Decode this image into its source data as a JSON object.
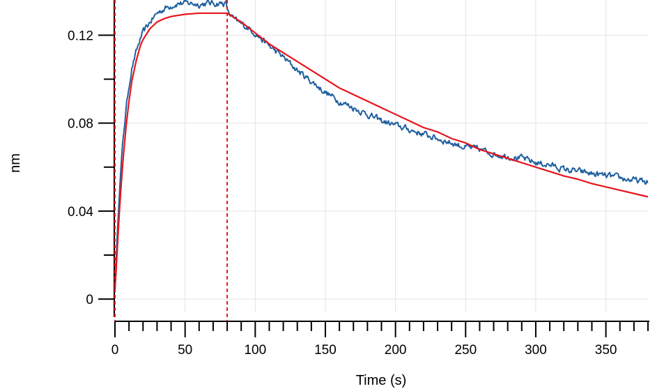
{
  "chart_data": {
    "type": "line",
    "title": "",
    "xlabel": "Time (s)",
    "ylabel": "nm",
    "xlim": [
      0,
      380
    ],
    "ylim": [
      -0.006,
      0.136
    ],
    "xticks": [
      0,
      50,
      100,
      150,
      200,
      250,
      300,
      350
    ],
    "xtick_labels": [
      "0",
      "50",
      "100",
      "150",
      "200",
      "250",
      "300",
      "350"
    ],
    "yticks": [
      0,
      0.04,
      0.08,
      0.12
    ],
    "ytick_labels": [
      "0",
      "0.04",
      "0.08",
      "0.12"
    ],
    "grid": true,
    "vlines": [
      0,
      80
    ],
    "series": [
      {
        "color": "#1f5f9e",
        "style": "noisy",
        "points": [
          [
            0,
            0.003
          ],
          [
            0.5,
            0.012
          ],
          [
            1,
            0.02
          ],
          [
            2,
            0.035
          ],
          [
            3,
            0.047
          ],
          [
            4,
            0.057
          ],
          [
            5,
            0.066
          ],
          [
            6,
            0.074
          ],
          [
            8,
            0.087
          ],
          [
            10,
            0.097
          ],
          [
            12,
            0.105
          ],
          [
            15,
            0.112
          ],
          [
            18,
            0.118
          ],
          [
            20,
            0.121
          ],
          [
            25,
            0.126
          ],
          [
            30,
            0.13
          ],
          [
            35,
            0.132
          ],
          [
            40,
            0.1335
          ],
          [
            45,
            0.1345
          ],
          [
            50,
            0.1345
          ],
          [
            55,
            0.1345
          ],
          [
            60,
            0.134
          ],
          [
            65,
            0.1345
          ],
          [
            70,
            0.1345
          ],
          [
            75,
            0.1345
          ],
          [
            79.5,
            0.1345
          ],
          [
            80,
            0.131
          ],
          [
            82,
            0.1295
          ],
          [
            85,
            0.127
          ],
          [
            90,
            0.125
          ],
          [
            95,
            0.1235
          ],
          [
            100,
            0.121
          ],
          [
            110,
            0.115
          ],
          [
            120,
            0.11
          ],
          [
            130,
            0.104
          ],
          [
            140,
            0.099
          ],
          [
            150,
            0.094
          ],
          [
            160,
            0.09
          ],
          [
            170,
            0.087
          ],
          [
            180,
            0.084
          ],
          [
            190,
            0.081
          ],
          [
            200,
            0.079
          ],
          [
            210,
            0.077
          ],
          [
            220,
            0.075
          ],
          [
            230,
            0.073
          ],
          [
            240,
            0.071
          ],
          [
            250,
            0.069
          ],
          [
            260,
            0.068
          ],
          [
            270,
            0.066
          ],
          [
            280,
            0.065
          ],
          [
            290,
            0.064
          ],
          [
            300,
            0.062
          ],
          [
            310,
            0.061
          ],
          [
            320,
            0.059
          ],
          [
            330,
            0.058
          ],
          [
            340,
            0.057
          ],
          [
            350,
            0.056
          ],
          [
            360,
            0.055
          ],
          [
            370,
            0.054
          ],
          [
            380,
            0.053
          ]
        ]
      },
      {
        "color": "#e8141c",
        "style": "fit",
        "points": [
          [
            0,
            0.005
          ],
          [
            0.5,
            0.0095
          ],
          [
            1,
            0.015
          ],
          [
            2,
            0.027
          ],
          [
            3,
            0.038
          ],
          [
            4,
            0.048
          ],
          [
            5,
            0.057
          ],
          [
            6,
            0.065
          ],
          [
            8,
            0.079
          ],
          [
            10,
            0.09
          ],
          [
            12,
            0.099
          ],
          [
            15,
            0.108
          ],
          [
            18,
            0.115
          ],
          [
            20,
            0.118
          ],
          [
            25,
            0.123
          ],
          [
            30,
            0.126
          ],
          [
            35,
            0.1275
          ],
          [
            40,
            0.1285
          ],
          [
            45,
            0.129
          ],
          [
            50,
            0.1295
          ],
          [
            60,
            0.13
          ],
          [
            70,
            0.13
          ],
          [
            80,
            0.13
          ],
          [
            90,
            0.126
          ],
          [
            100,
            0.121
          ],
          [
            110,
            0.116
          ],
          [
            120,
            0.112
          ],
          [
            130,
            0.108
          ],
          [
            140,
            0.104
          ],
          [
            150,
            0.1
          ],
          [
            160,
            0.096
          ],
          [
            170,
            0.093
          ],
          [
            180,
            0.09
          ],
          [
            190,
            0.087
          ],
          [
            200,
            0.084
          ],
          [
            210,
            0.081
          ],
          [
            220,
            0.078
          ],
          [
            230,
            0.076
          ],
          [
            240,
            0.073
          ],
          [
            250,
            0.071
          ],
          [
            260,
            0.068
          ],
          [
            270,
            0.066
          ],
          [
            280,
            0.064
          ],
          [
            290,
            0.062
          ],
          [
            300,
            0.06
          ],
          [
            310,
            0.058
          ],
          [
            320,
            0.056
          ],
          [
            330,
            0.0545
          ],
          [
            340,
            0.0525
          ],
          [
            350,
            0.051
          ],
          [
            360,
            0.0495
          ],
          [
            370,
            0.048
          ],
          [
            380,
            0.0465
          ]
        ]
      }
    ]
  }
}
